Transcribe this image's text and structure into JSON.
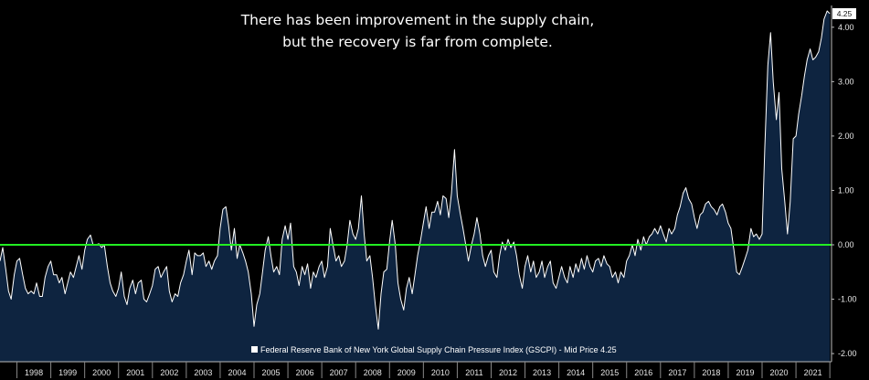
{
  "chart_data": {
    "type": "area",
    "title_lines": [
      "There has been improvement in the supply chain,",
      "but the recovery is far from complete."
    ],
    "legend": "Federal Reserve Bank of New York Global Supply Chain Pressure Index (GSCPI) - Mid Price 4.25",
    "last_value_label": "4.25",
    "ylim": [
      -2.15,
      4.4
    ],
    "yticks": [
      "4.00",
      "3.00",
      "2.00",
      "1.00",
      "0.00",
      "-1.00",
      "-2.00"
    ],
    "ytick_values": [
      4,
      3,
      2,
      1,
      0,
      -1,
      -2
    ],
    "xlim": [
      1997.5,
      2022.05
    ],
    "x_tick_labels": [
      "1998",
      "1999",
      "2000",
      "2001",
      "2002",
      "2003",
      "2004",
      "2005",
      "2006",
      "2007",
      "2008",
      "2009",
      "2010",
      "2011",
      "2012",
      "2013",
      "2014",
      "2015",
      "2016",
      "2017",
      "2018",
      "2019",
      "2020",
      "2021"
    ],
    "reference_line": {
      "y": 0,
      "color": "#22ee22"
    },
    "colors": {
      "line": "#ffffff",
      "fill": "#0e2440",
      "background": "#000000"
    },
    "series": [
      {
        "points": [
          [
            1997.5,
            -0.3
          ],
          [
            1997.58,
            -0.05
          ],
          [
            1997.67,
            -0.45
          ],
          [
            1997.75,
            -0.85
          ],
          [
            1997.83,
            -1.0
          ],
          [
            1997.92,
            -0.55
          ],
          [
            1998.0,
            -0.3
          ],
          [
            1998.08,
            -0.25
          ],
          [
            1998.17,
            -0.55
          ],
          [
            1998.25,
            -0.8
          ],
          [
            1998.33,
            -0.9
          ],
          [
            1998.42,
            -0.85
          ],
          [
            1998.5,
            -0.9
          ],
          [
            1998.58,
            -0.7
          ],
          [
            1998.67,
            -0.95
          ],
          [
            1998.75,
            -0.95
          ],
          [
            1998.83,
            -0.6
          ],
          [
            1998.92,
            -0.4
          ],
          [
            1999.0,
            -0.3
          ],
          [
            1999.08,
            -0.55
          ],
          [
            1999.17,
            -0.55
          ],
          [
            1999.25,
            -0.7
          ],
          [
            1999.33,
            -0.6
          ],
          [
            1999.42,
            -0.9
          ],
          [
            1999.5,
            -0.7
          ],
          [
            1999.58,
            -0.5
          ],
          [
            1999.67,
            -0.6
          ],
          [
            1999.75,
            -0.4
          ],
          [
            1999.83,
            -0.2
          ],
          [
            1999.92,
            -0.45
          ],
          [
            2000.0,
            -0.1
          ],
          [
            2000.08,
            0.1
          ],
          [
            2000.17,
            0.18
          ],
          [
            2000.25,
            0.0
          ],
          [
            2000.33,
            0.0
          ],
          [
            2000.42,
            0.02
          ],
          [
            2000.5,
            -0.05
          ],
          [
            2000.58,
            0.0
          ],
          [
            2000.67,
            -0.4
          ],
          [
            2000.75,
            -0.7
          ],
          [
            2000.83,
            -0.85
          ],
          [
            2000.92,
            -0.95
          ],
          [
            2001.0,
            -0.8
          ],
          [
            2001.08,
            -0.5
          ],
          [
            2001.17,
            -0.95
          ],
          [
            2001.25,
            -1.1
          ],
          [
            2001.33,
            -0.8
          ],
          [
            2001.42,
            -0.65
          ],
          [
            2001.5,
            -0.9
          ],
          [
            2001.58,
            -0.7
          ],
          [
            2001.67,
            -0.65
          ],
          [
            2001.75,
            -1.0
          ],
          [
            2001.83,
            -1.05
          ],
          [
            2001.92,
            -0.9
          ],
          [
            2002.0,
            -0.75
          ],
          [
            2002.08,
            -0.45
          ],
          [
            2002.17,
            -0.4
          ],
          [
            2002.25,
            -0.6
          ],
          [
            2002.33,
            -0.5
          ],
          [
            2002.42,
            -0.4
          ],
          [
            2002.5,
            -0.85
          ],
          [
            2002.58,
            -1.05
          ],
          [
            2002.67,
            -0.9
          ],
          [
            2002.75,
            -0.95
          ],
          [
            2002.83,
            -0.7
          ],
          [
            2002.92,
            -0.55
          ],
          [
            2003.0,
            -0.3
          ],
          [
            2003.08,
            -0.1
          ],
          [
            2003.17,
            -0.55
          ],
          [
            2003.25,
            -0.15
          ],
          [
            2003.33,
            -0.2
          ],
          [
            2003.42,
            -0.2
          ],
          [
            2003.5,
            -0.15
          ],
          [
            2003.58,
            -0.4
          ],
          [
            2003.67,
            -0.3
          ],
          [
            2003.75,
            -0.45
          ],
          [
            2003.83,
            -0.3
          ],
          [
            2003.92,
            -0.2
          ],
          [
            2004.0,
            0.3
          ],
          [
            2004.08,
            0.65
          ],
          [
            2004.17,
            0.7
          ],
          [
            2004.25,
            0.35
          ],
          [
            2004.33,
            -0.1
          ],
          [
            2004.42,
            0.3
          ],
          [
            2004.5,
            -0.25
          ],
          [
            2004.58,
            0.0
          ],
          [
            2004.67,
            -0.15
          ],
          [
            2004.75,
            -0.3
          ],
          [
            2004.83,
            -0.5
          ],
          [
            2004.92,
            -0.9
          ],
          [
            2005.0,
            -1.5
          ],
          [
            2005.08,
            -1.1
          ],
          [
            2005.17,
            -0.9
          ],
          [
            2005.25,
            -0.5
          ],
          [
            2005.33,
            -0.1
          ],
          [
            2005.42,
            0.15
          ],
          [
            2005.5,
            -0.2
          ],
          [
            2005.58,
            -0.5
          ],
          [
            2005.67,
            -0.4
          ],
          [
            2005.75,
            -0.55
          ],
          [
            2005.83,
            0.1
          ],
          [
            2005.92,
            0.35
          ],
          [
            2006.0,
            0.1
          ],
          [
            2006.08,
            0.4
          ],
          [
            2006.17,
            -0.4
          ],
          [
            2006.25,
            -0.5
          ],
          [
            2006.33,
            -0.75
          ],
          [
            2006.42,
            -0.4
          ],
          [
            2006.5,
            -0.55
          ],
          [
            2006.58,
            -0.35
          ],
          [
            2006.67,
            -0.8
          ],
          [
            2006.75,
            -0.5
          ],
          [
            2006.83,
            -0.6
          ],
          [
            2006.92,
            -0.4
          ],
          [
            2007.0,
            -0.3
          ],
          [
            2007.08,
            -0.6
          ],
          [
            2007.17,
            -0.4
          ],
          [
            2007.25,
            0.3
          ],
          [
            2007.33,
            0.0
          ],
          [
            2007.42,
            -0.3
          ],
          [
            2007.5,
            -0.2
          ],
          [
            2007.58,
            -0.4
          ],
          [
            2007.67,
            -0.3
          ],
          [
            2007.75,
            0.0
          ],
          [
            2007.83,
            0.45
          ],
          [
            2007.92,
            0.2
          ],
          [
            2008.0,
            0.1
          ],
          [
            2008.08,
            0.3
          ],
          [
            2008.17,
            0.9
          ],
          [
            2008.25,
            0.2
          ],
          [
            2008.33,
            -0.3
          ],
          [
            2008.42,
            -0.2
          ],
          [
            2008.5,
            -0.6
          ],
          [
            2008.58,
            -1.1
          ],
          [
            2008.67,
            -1.55
          ],
          [
            2008.75,
            -0.9
          ],
          [
            2008.83,
            -0.5
          ],
          [
            2008.92,
            -0.45
          ],
          [
            2009.0,
            0.05
          ],
          [
            2009.08,
            0.45
          ],
          [
            2009.17,
            0.0
          ],
          [
            2009.25,
            -0.7
          ],
          [
            2009.33,
            -1.0
          ],
          [
            2009.42,
            -1.2
          ],
          [
            2009.5,
            -0.8
          ],
          [
            2009.58,
            -0.6
          ],
          [
            2009.67,
            -0.9
          ],
          [
            2009.75,
            -0.55
          ],
          [
            2009.83,
            -0.2
          ],
          [
            2009.92,
            0.1
          ],
          [
            2010.0,
            0.4
          ],
          [
            2010.08,
            0.7
          ],
          [
            2010.17,
            0.3
          ],
          [
            2010.25,
            0.6
          ],
          [
            2010.33,
            0.6
          ],
          [
            2010.42,
            0.8
          ],
          [
            2010.5,
            0.55
          ],
          [
            2010.58,
            0.9
          ],
          [
            2010.67,
            0.85
          ],
          [
            2010.75,
            0.5
          ],
          [
            2010.83,
            0.95
          ],
          [
            2010.92,
            1.75
          ],
          [
            2011.0,
            0.9
          ],
          [
            2011.08,
            0.6
          ],
          [
            2011.17,
            0.3
          ],
          [
            2011.25,
            0.0
          ],
          [
            2011.33,
            -0.3
          ],
          [
            2011.42,
            0.0
          ],
          [
            2011.5,
            0.2
          ],
          [
            2011.58,
            0.5
          ],
          [
            2011.67,
            0.2
          ],
          [
            2011.75,
            -0.2
          ],
          [
            2011.83,
            -0.4
          ],
          [
            2011.92,
            -0.2
          ],
          [
            2012.0,
            -0.1
          ],
          [
            2012.08,
            -0.5
          ],
          [
            2012.17,
            -0.6
          ],
          [
            2012.25,
            -0.2
          ],
          [
            2012.33,
            0.05
          ],
          [
            2012.42,
            -0.1
          ],
          [
            2012.5,
            0.1
          ],
          [
            2012.58,
            -0.05
          ],
          [
            2012.67,
            0.05
          ],
          [
            2012.75,
            -0.2
          ],
          [
            2012.83,
            -0.55
          ],
          [
            2012.92,
            -0.8
          ],
          [
            2013.0,
            -0.4
          ],
          [
            2013.08,
            -0.2
          ],
          [
            2013.17,
            -0.5
          ],
          [
            2013.25,
            -0.3
          ],
          [
            2013.33,
            -0.6
          ],
          [
            2013.42,
            -0.5
          ],
          [
            2013.5,
            -0.3
          ],
          [
            2013.58,
            -0.6
          ],
          [
            2013.67,
            -0.4
          ],
          [
            2013.75,
            -0.3
          ],
          [
            2013.83,
            -0.7
          ],
          [
            2013.92,
            -0.8
          ],
          [
            2014.0,
            -0.6
          ],
          [
            2014.08,
            -0.4
          ],
          [
            2014.17,
            -0.6
          ],
          [
            2014.25,
            -0.7
          ],
          [
            2014.33,
            -0.4
          ],
          [
            2014.42,
            -0.6
          ],
          [
            2014.5,
            -0.35
          ],
          [
            2014.58,
            -0.5
          ],
          [
            2014.67,
            -0.25
          ],
          [
            2014.75,
            -0.45
          ],
          [
            2014.83,
            -0.2
          ],
          [
            2014.92,
            -0.4
          ],
          [
            2015.0,
            -0.5
          ],
          [
            2015.08,
            -0.3
          ],
          [
            2015.17,
            -0.25
          ],
          [
            2015.25,
            -0.4
          ],
          [
            2015.33,
            -0.2
          ],
          [
            2015.42,
            -0.35
          ],
          [
            2015.5,
            -0.4
          ],
          [
            2015.58,
            -0.6
          ],
          [
            2015.67,
            -0.5
          ],
          [
            2015.75,
            -0.7
          ],
          [
            2015.83,
            -0.5
          ],
          [
            2015.92,
            -0.6
          ],
          [
            2016.0,
            -0.3
          ],
          [
            2016.08,
            -0.2
          ],
          [
            2016.17,
            0.0
          ],
          [
            2016.25,
            -0.2
          ],
          [
            2016.33,
            0.1
          ],
          [
            2016.42,
            -0.1
          ],
          [
            2016.5,
            0.15
          ],
          [
            2016.58,
            0.0
          ],
          [
            2016.67,
            0.15
          ],
          [
            2016.75,
            0.2
          ],
          [
            2016.83,
            0.3
          ],
          [
            2016.92,
            0.2
          ],
          [
            2017.0,
            0.35
          ],
          [
            2017.08,
            0.2
          ],
          [
            2017.17,
            0.05
          ],
          [
            2017.25,
            0.3
          ],
          [
            2017.33,
            0.2
          ],
          [
            2017.42,
            0.3
          ],
          [
            2017.5,
            0.55
          ],
          [
            2017.58,
            0.7
          ],
          [
            2017.67,
            0.95
          ],
          [
            2017.75,
            1.05
          ],
          [
            2017.83,
            0.85
          ],
          [
            2017.92,
            0.75
          ],
          [
            2018.0,
            0.5
          ],
          [
            2018.08,
            0.3
          ],
          [
            2018.17,
            0.55
          ],
          [
            2018.25,
            0.6
          ],
          [
            2018.33,
            0.75
          ],
          [
            2018.42,
            0.8
          ],
          [
            2018.5,
            0.7
          ],
          [
            2018.58,
            0.65
          ],
          [
            2018.67,
            0.55
          ],
          [
            2018.75,
            0.7
          ],
          [
            2018.83,
            0.75
          ],
          [
            2018.92,
            0.6
          ],
          [
            2019.0,
            0.4
          ],
          [
            2019.08,
            0.3
          ],
          [
            2019.17,
            -0.1
          ],
          [
            2019.25,
            -0.5
          ],
          [
            2019.33,
            -0.55
          ],
          [
            2019.42,
            -0.4
          ],
          [
            2019.5,
            -0.25
          ],
          [
            2019.58,
            -0.1
          ],
          [
            2019.67,
            0.3
          ],
          [
            2019.75,
            0.15
          ],
          [
            2019.83,
            0.2
          ],
          [
            2019.92,
            0.1
          ],
          [
            2020.0,
            0.2
          ],
          [
            2020.08,
            1.8
          ],
          [
            2020.17,
            3.3
          ],
          [
            2020.25,
            3.9
          ],
          [
            2020.33,
            3.0
          ],
          [
            2020.42,
            2.3
          ],
          [
            2020.5,
            2.8
          ],
          [
            2020.58,
            1.4
          ],
          [
            2020.67,
            0.8
          ],
          [
            2020.75,
            0.2
          ],
          [
            2020.83,
            0.8
          ],
          [
            2020.92,
            1.95
          ],
          [
            2021.0,
            2.0
          ],
          [
            2021.08,
            2.4
          ],
          [
            2021.17,
            2.75
          ],
          [
            2021.25,
            3.1
          ],
          [
            2021.33,
            3.4
          ],
          [
            2021.42,
            3.6
          ],
          [
            2021.5,
            3.4
          ],
          [
            2021.58,
            3.45
          ],
          [
            2021.67,
            3.55
          ],
          [
            2021.75,
            3.8
          ],
          [
            2021.83,
            4.15
          ],
          [
            2021.92,
            4.3
          ],
          [
            2022.0,
            4.25
          ]
        ]
      }
    ]
  }
}
